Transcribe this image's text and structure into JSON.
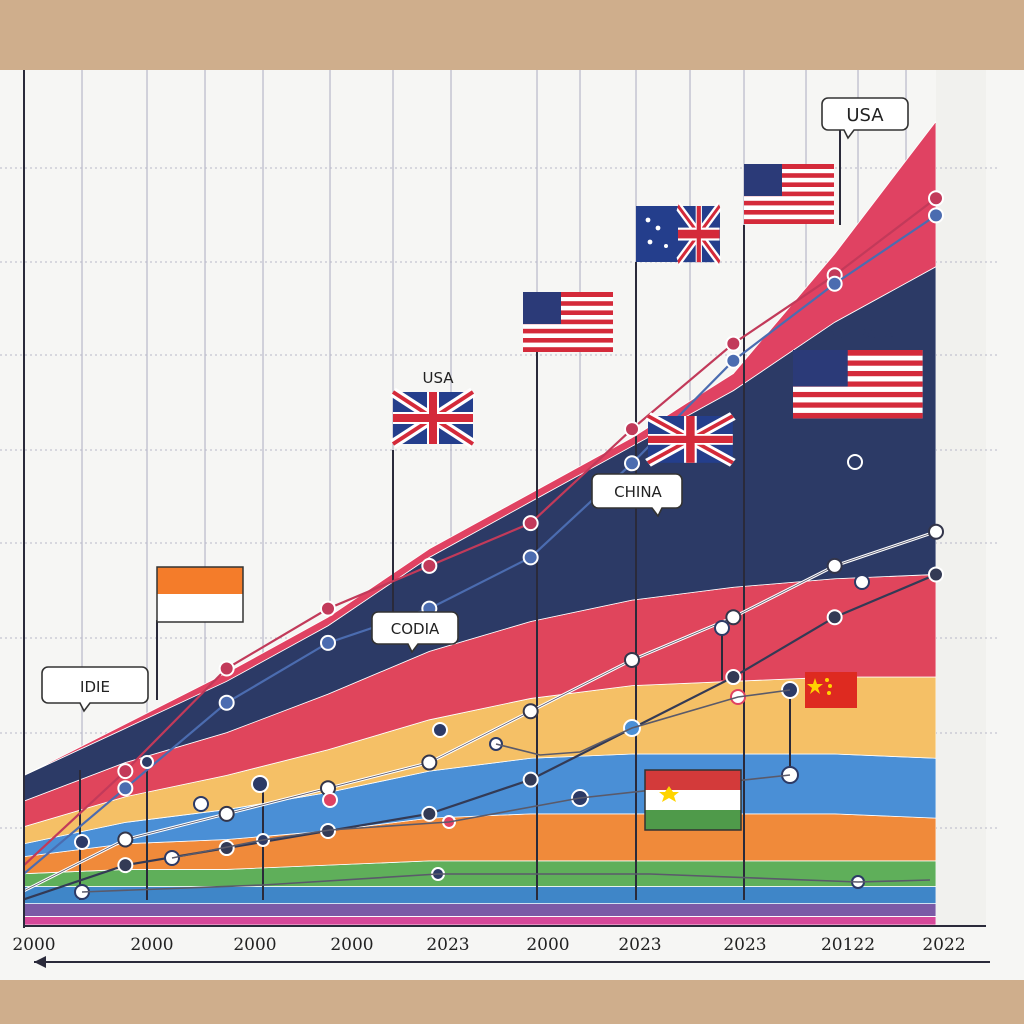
{
  "chart_data": {
    "type": "area",
    "title": "",
    "xlabel": "",
    "ylabel": "",
    "x_tick_labels": [
      "2000",
      "2000",
      "2000",
      "2000",
      "2023",
      "2000",
      "2023",
      "2023",
      "20122",
      "2022"
    ],
    "x": [
      0,
      1,
      2,
      3,
      4,
      5,
      6,
      7,
      8,
      9
    ],
    "ylim": [
      0,
      100
    ],
    "series": [
      {
        "color": "#d6489a",
        "values": [
          1,
          1,
          1,
          1,
          1,
          1,
          1,
          1,
          1,
          1
        ]
      },
      {
        "color": "#7b5aa6",
        "values": [
          1.5,
          1.5,
          1.5,
          1.5,
          1.5,
          1.5,
          1.5,
          1.5,
          1.5,
          1.5
        ]
      },
      {
        "color": "#3f86c8",
        "values": [
          2,
          2,
          2,
          2,
          2,
          2,
          2,
          2,
          2,
          2
        ]
      },
      {
        "color": "#5faf5a",
        "values": [
          1.5,
          2,
          2,
          2.5,
          3,
          3,
          3,
          3,
          3,
          3
        ]
      },
      {
        "color": "#f08a3a",
        "values": [
          2,
          3,
          3.5,
          4,
          5,
          5.5,
          5.5,
          5.5,
          5.5,
          5
        ]
      },
      {
        "color": "#4a8fd6",
        "values": [
          1.5,
          2.5,
          3.5,
          4.5,
          5.5,
          6.5,
          7,
          7,
          7,
          7
        ]
      },
      {
        "color": "#f5c066",
        "values": [
          2,
          3,
          4,
          5,
          6,
          7,
          8,
          8.5,
          9,
          9.5
        ]
      },
      {
        "color": "#e0455c",
        "values": [
          3,
          4,
          5,
          6.5,
          8,
          9,
          10,
          11,
          11.5,
          12
        ]
      },
      {
        "color": "#2c3a66",
        "values": [
          3,
          4,
          6,
          8,
          11,
          14,
          18,
          23,
          30,
          36
        ]
      },
      {
        "color": "#e04262",
        "values": [
          0,
          0.5,
          1,
          1,
          1,
          1,
          1,
          2,
          8,
          17
        ]
      }
    ],
    "line_series": [
      {
        "color": "#c23a5a",
        "values": [
          7,
          18,
          30,
          37,
          42,
          47,
          58,
          68,
          76,
          85
        ]
      },
      {
        "color": "#4b6cb0",
        "values": [
          6,
          16,
          26,
          33,
          37,
          43,
          54,
          66,
          75,
          83
        ]
      },
      {
        "color": "#ffffff",
        "values": [
          4,
          10,
          13,
          16,
          19,
          25,
          31,
          36,
          42,
          46
        ]
      },
      {
        "color": "#333a55",
        "values": [
          3,
          7,
          9,
          11,
          13,
          17,
          23,
          29,
          36,
          41
        ]
      }
    ],
    "callouts": {
      "idie": "IDIE",
      "codia": "CODIA",
      "china": "CHINA",
      "usa_top": "USA",
      "usa_mid": "USA",
      "australia": "AUSTRALIA"
    },
    "colors": {
      "background": "#cfae8c",
      "panel": "#f6f6f4",
      "grid": "#b8b8c8",
      "axis": "#2a2a3a"
    },
    "flag_icons": [
      "india-flag",
      "uk-flag",
      "usa-flag",
      "australia-flag",
      "usa-flag",
      "usa-flag",
      "uk-flag",
      "china-flag",
      "hungary-flag"
    ],
    "grid": true
  }
}
